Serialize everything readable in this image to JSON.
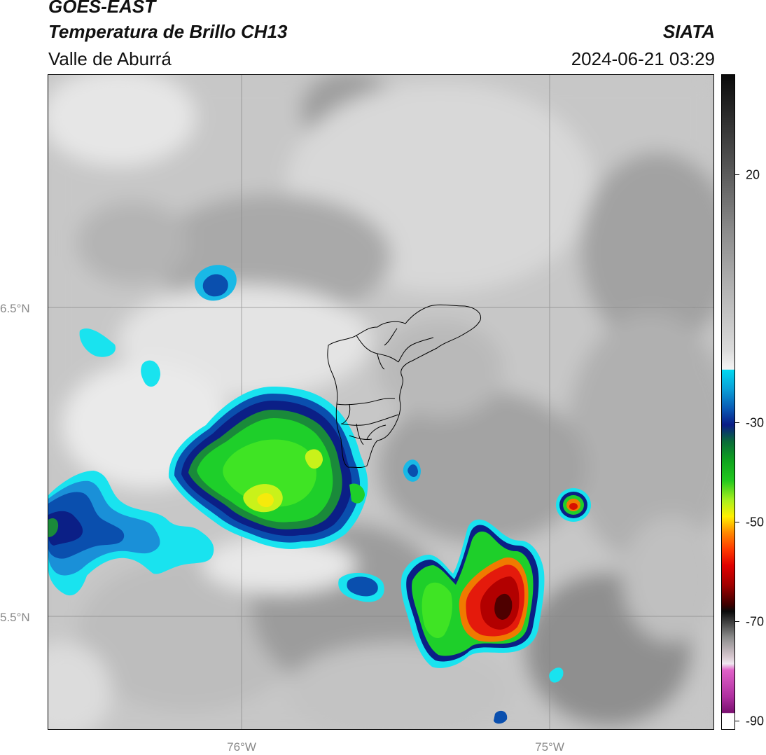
{
  "header": {
    "satellite": "GOES-EAST",
    "product": "Temperatura de Brillo CH13",
    "region": "Valle de Aburrá",
    "organization": "SIATA",
    "datetime": "2024-06-21 03:29"
  },
  "map": {
    "lat_labels": [
      "6.5°N",
      "5.5°N"
    ],
    "lon_labels": [
      "76°W",
      "75°W"
    ],
    "background_palette": [
      "#a8a8a8",
      "#d0d0d0",
      "#efefef"
    ],
    "cold_cloud_palette": {
      "cyan": "#19e3ef",
      "blue": "#0a4fae",
      "navy": "#0b1f86",
      "green": "#1ecf2a",
      "yellow_green": "#c9f21a",
      "red": "#e41a0c",
      "dark_red": "#4e0000"
    }
  },
  "colorbar": {
    "ticks": [
      "20",
      "-30",
      "-50",
      "-70",
      "-90"
    ],
    "colors": {
      "top_black": "#0a0a0a",
      "gray_mid": "#8c8c8c",
      "white": "#f4f4f4",
      "cyan": "#00d8f0",
      "navy": "#0a1c86",
      "green": "#22c81e",
      "yellow": "#fff000",
      "orange": "#ff8800",
      "red": "#e00000",
      "dark_red": "#3c0000",
      "magenta": "#e060c8",
      "purple": "#7a1070"
    }
  }
}
